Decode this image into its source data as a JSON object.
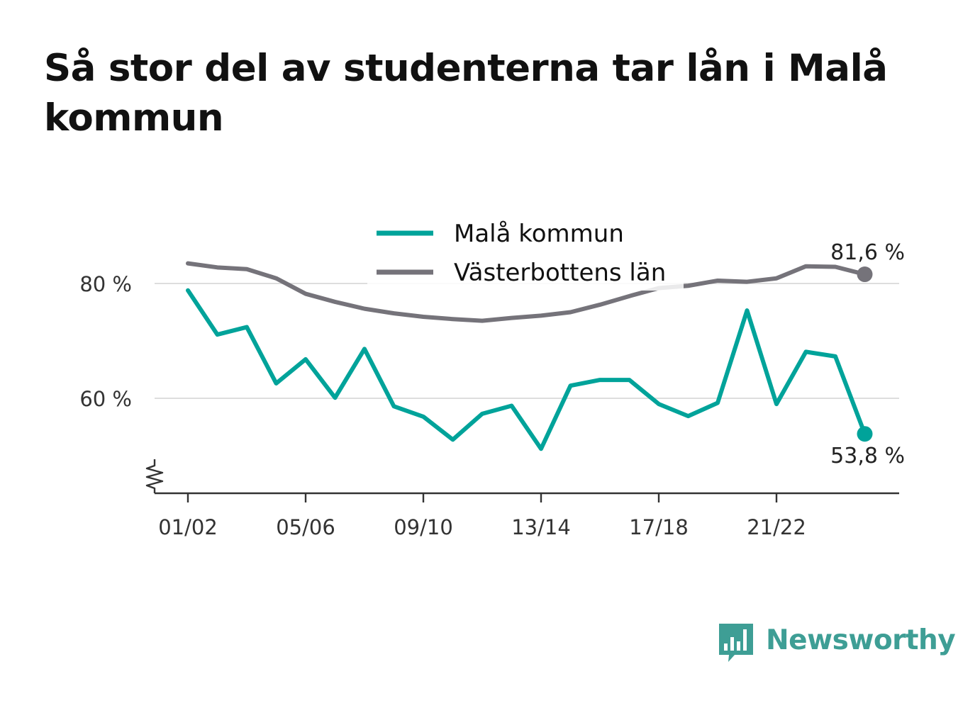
{
  "title": "Så stor del av studenterna tar lån i Malå kommun",
  "brand": {
    "name": "Newsworthy",
    "color": "#3e9e95"
  },
  "chart_data": {
    "type": "line",
    "x": [
      "01/02",
      "02/03",
      "03/04",
      "04/05",
      "05/06",
      "06/07",
      "07/08",
      "08/09",
      "09/10",
      "10/11",
      "11/12",
      "12/13",
      "13/14",
      "14/15",
      "15/16",
      "16/17",
      "17/18",
      "18/19",
      "19/20",
      "20/21",
      "21/22",
      "22/23",
      "23/24",
      "24/25"
    ],
    "x_tick_labels": [
      "01/02",
      "05/06",
      "09/10",
      "13/14",
      "17/18",
      "21/22"
    ],
    "y_tick_labels": [
      "80 %",
      "60 %"
    ],
    "y_ticks": [
      80,
      60
    ],
    "ylim": [
      43.5,
      89.5
    ],
    "series": [
      {
        "name": "Malå kommun",
        "color": "#00a39a",
        "values": [
          78.8,
          71.1,
          72.4,
          62.6,
          66.8,
          60.1,
          68.6,
          58.6,
          56.8,
          52.8,
          57.3,
          58.7,
          51.2,
          62.2,
          63.2,
          63.2,
          59.0,
          56.9,
          59.2,
          75.3,
          59.0,
          68.1,
          67.3,
          53.8
        ],
        "end_label": "53,8 %"
      },
      {
        "name": "Västerbottens län",
        "color": "#75737a",
        "values": [
          83.5,
          82.8,
          82.5,
          80.9,
          78.2,
          76.8,
          75.6,
          74.8,
          74.2,
          73.8,
          73.5,
          74.0,
          74.4,
          75.0,
          76.3,
          77.8,
          79.2,
          79.6,
          80.5,
          80.3,
          80.9,
          83.0,
          82.9,
          81.6
        ],
        "end_label": "81,6 %"
      }
    ],
    "legend": "top-center",
    "grid": true
  }
}
